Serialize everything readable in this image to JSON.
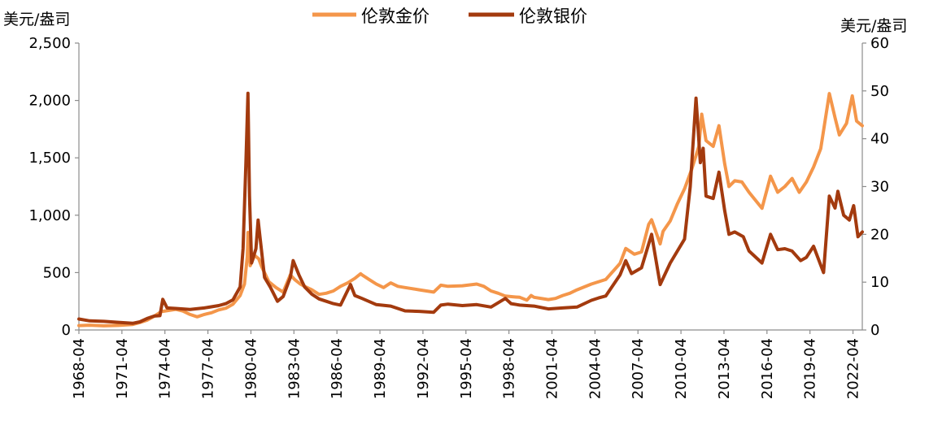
{
  "chart_data": {
    "type": "line",
    "title": "",
    "xlabel": "",
    "left_axis_label": "美元/盎司",
    "right_axis_label": "美元/盎司",
    "left_ylim": [
      0,
      2500
    ],
    "right_ylim": [
      0,
      60
    ],
    "left_ticks": [
      "0",
      "500",
      "1,000",
      "1,500",
      "2,000",
      "2,500"
    ],
    "left_tick_values": [
      0,
      500,
      1000,
      1500,
      2000,
      2500
    ],
    "right_ticks": [
      "0",
      "10",
      "20",
      "30",
      "40",
      "50",
      "60"
    ],
    "right_tick_values": [
      0,
      10,
      20,
      30,
      40,
      50,
      60
    ],
    "x_ticks": [
      "1968-04",
      "1971-04",
      "1974-04",
      "1977-04",
      "1980-04",
      "1983-04",
      "1986-04",
      "1989-04",
      "1992-04",
      "1995-04",
      "1998-04",
      "2001-04",
      "2004-04",
      "2007-04",
      "2010-04",
      "2013-04",
      "2016-04",
      "2019-04",
      "2022-04"
    ],
    "xlim": [
      1968.25,
      2022.9
    ],
    "legend_position": "top-center",
    "grid": false,
    "series": [
      {
        "name": "伦敦金价",
        "axis": "left",
        "color": "#F4964A",
        "points": [
          [
            1968.25,
            38
          ],
          [
            1969.0,
            42
          ],
          [
            1970.0,
            36
          ],
          [
            1971.0,
            40
          ],
          [
            1972.0,
            48
          ],
          [
            1972.5,
            65
          ],
          [
            1973.0,
            85
          ],
          [
            1973.5,
            120
          ],
          [
            1974.0,
            160
          ],
          [
            1974.5,
            170
          ],
          [
            1975.0,
            180
          ],
          [
            1975.5,
            165
          ],
          [
            1976.0,
            135
          ],
          [
            1976.5,
            115
          ],
          [
            1977.0,
            135
          ],
          [
            1977.5,
            150
          ],
          [
            1978.0,
            175
          ],
          [
            1978.5,
            190
          ],
          [
            1979.0,
            225
          ],
          [
            1979.5,
            300
          ],
          [
            1979.8,
            400
          ],
          [
            1980.0,
            640
          ],
          [
            1980.05,
            850
          ],
          [
            1980.2,
            560
          ],
          [
            1980.5,
            650
          ],
          [
            1980.8,
            620
          ],
          [
            1981.0,
            550
          ],
          [
            1981.5,
            420
          ],
          [
            1982.0,
            370
          ],
          [
            1982.5,
            330
          ],
          [
            1983.0,
            480
          ],
          [
            1983.3,
            440
          ],
          [
            1983.7,
            400
          ],
          [
            1984.0,
            380
          ],
          [
            1984.5,
            350
          ],
          [
            1985.0,
            310
          ],
          [
            1985.5,
            320
          ],
          [
            1986.0,
            340
          ],
          [
            1986.5,
            380
          ],
          [
            1987.0,
            410
          ],
          [
            1987.5,
            450
          ],
          [
            1987.9,
            490
          ],
          [
            1988.0,
            480
          ],
          [
            1988.5,
            440
          ],
          [
            1989.0,
            400
          ],
          [
            1989.5,
            370
          ],
          [
            1990.0,
            410
          ],
          [
            1990.5,
            380
          ],
          [
            1991.0,
            370
          ],
          [
            1991.5,
            360
          ],
          [
            1992.0,
            350
          ],
          [
            1992.5,
            340
          ],
          [
            1993.0,
            330
          ],
          [
            1993.5,
            390
          ],
          [
            1994.0,
            380
          ],
          [
            1995.0,
            385
          ],
          [
            1996.0,
            400
          ],
          [
            1996.5,
            380
          ],
          [
            1997.0,
            340
          ],
          [
            1997.5,
            320
          ],
          [
            1998.0,
            295
          ],
          [
            1998.5,
            290
          ],
          [
            1999.0,
            285
          ],
          [
            1999.5,
            260
          ],
          [
            1999.8,
            300
          ],
          [
            2000.0,
            285
          ],
          [
            2001.0,
            265
          ],
          [
            2001.5,
            275
          ],
          [
            2002.0,
            300
          ],
          [
            2002.5,
            320
          ],
          [
            2003.0,
            350
          ],
          [
            2004.0,
            400
          ],
          [
            2005.0,
            440
          ],
          [
            2006.0,
            580
          ],
          [
            2006.4,
            710
          ],
          [
            2007.0,
            660
          ],
          [
            2007.5,
            680
          ],
          [
            2008.0,
            920
          ],
          [
            2008.2,
            960
          ],
          [
            2008.8,
            750
          ],
          [
            2009.0,
            860
          ],
          [
            2009.5,
            950
          ],
          [
            2010.0,
            1100
          ],
          [
            2010.5,
            1230
          ],
          [
            2011.0,
            1400
          ],
          [
            2011.5,
            1600
          ],
          [
            2011.7,
            1880
          ],
          [
            2012.0,
            1650
          ],
          [
            2012.5,
            1600
          ],
          [
            2012.9,
            1780
          ],
          [
            2013.3,
            1450
          ],
          [
            2013.6,
            1250
          ],
          [
            2014.0,
            1300
          ],
          [
            2014.5,
            1290
          ],
          [
            2015.0,
            1200
          ],
          [
            2015.9,
            1060
          ],
          [
            2016.5,
            1340
          ],
          [
            2017.0,
            1200
          ],
          [
            2017.5,
            1250
          ],
          [
            2018.0,
            1320
          ],
          [
            2018.5,
            1200
          ],
          [
            2019.0,
            1290
          ],
          [
            2019.5,
            1420
          ],
          [
            2020.0,
            1580
          ],
          [
            2020.6,
            2060
          ],
          [
            2021.0,
            1850
          ],
          [
            2021.3,
            1700
          ],
          [
            2021.8,
            1800
          ],
          [
            2022.2,
            2040
          ],
          [
            2022.5,
            1820
          ],
          [
            2022.9,
            1780
          ]
        ]
      },
      {
        "name": "伦敦银价",
        "axis": "right",
        "color": "#A33A0E",
        "points": [
          [
            1968.25,
            2.3
          ],
          [
            1969.0,
            1.9
          ],
          [
            1970.0,
            1.8
          ],
          [
            1971.0,
            1.6
          ],
          [
            1972.0,
            1.4
          ],
          [
            1972.5,
            1.7
          ],
          [
            1973.0,
            2.4
          ],
          [
            1973.5,
            2.9
          ],
          [
            1973.9,
            3.0
          ],
          [
            1974.1,
            6.4
          ],
          [
            1974.4,
            4.6
          ],
          [
            1975.0,
            4.5
          ],
          [
            1976.0,
            4.3
          ],
          [
            1977.0,
            4.6
          ],
          [
            1978.0,
            5.1
          ],
          [
            1978.5,
            5.5
          ],
          [
            1979.0,
            6.3
          ],
          [
            1979.5,
            9.0
          ],
          [
            1979.7,
            17.0
          ],
          [
            1979.9,
            35.0
          ],
          [
            1980.04,
            49.5
          ],
          [
            1980.15,
            28.0
          ],
          [
            1980.3,
            14.0
          ],
          [
            1980.6,
            17.0
          ],
          [
            1980.75,
            23.0
          ],
          [
            1980.9,
            19.0
          ],
          [
            1981.2,
            11.0
          ],
          [
            1981.6,
            9.0
          ],
          [
            1982.1,
            6.0
          ],
          [
            1982.5,
            7.0
          ],
          [
            1983.0,
            11.0
          ],
          [
            1983.2,
            14.5
          ],
          [
            1983.6,
            11.5
          ],
          [
            1984.0,
            9.0
          ],
          [
            1984.5,
            7.5
          ],
          [
            1985.0,
            6.5
          ],
          [
            1985.5,
            6.0
          ],
          [
            1986.0,
            5.5
          ],
          [
            1986.5,
            5.2
          ],
          [
            1987.2,
            9.5
          ],
          [
            1987.5,
            7.2
          ],
          [
            1988.0,
            6.6
          ],
          [
            1989.0,
            5.3
          ],
          [
            1990.0,
            5.0
          ],
          [
            1991.0,
            4.0
          ],
          [
            1992.0,
            3.9
          ],
          [
            1993.0,
            3.7
          ],
          [
            1993.5,
            5.2
          ],
          [
            1994.0,
            5.4
          ],
          [
            1995.0,
            5.1
          ],
          [
            1996.0,
            5.3
          ],
          [
            1997.0,
            4.8
          ],
          [
            1998.0,
            6.6
          ],
          [
            1998.4,
            5.5
          ],
          [
            1999.0,
            5.2
          ],
          [
            2000.0,
            5.0
          ],
          [
            2001.0,
            4.4
          ],
          [
            2002.0,
            4.6
          ],
          [
            2003.0,
            4.8
          ],
          [
            2004.0,
            6.2
          ],
          [
            2004.5,
            6.7
          ],
          [
            2005.0,
            7.1
          ],
          [
            2006.0,
            11.5
          ],
          [
            2006.4,
            14.5
          ],
          [
            2006.8,
            11.8
          ],
          [
            2007.5,
            13.0
          ],
          [
            2008.2,
            20.0
          ],
          [
            2008.8,
            9.5
          ],
          [
            2009.5,
            14.0
          ],
          [
            2010.0,
            16.5
          ],
          [
            2010.5,
            19.0
          ],
          [
            2010.9,
            30.0
          ],
          [
            2011.3,
            48.5
          ],
          [
            2011.6,
            35.0
          ],
          [
            2011.8,
            38.0
          ],
          [
            2012.0,
            28.0
          ],
          [
            2012.5,
            27.5
          ],
          [
            2012.9,
            33.0
          ],
          [
            2013.3,
            25.0
          ],
          [
            2013.6,
            20.0
          ],
          [
            2014.0,
            20.5
          ],
          [
            2014.6,
            19.5
          ],
          [
            2015.0,
            16.5
          ],
          [
            2015.9,
            14.0
          ],
          [
            2016.5,
            20.0
          ],
          [
            2017.0,
            16.8
          ],
          [
            2017.5,
            17.0
          ],
          [
            2018.0,
            16.5
          ],
          [
            2018.6,
            14.5
          ],
          [
            2019.0,
            15.2
          ],
          [
            2019.5,
            17.5
          ],
          [
            2020.2,
            12.0
          ],
          [
            2020.6,
            28.0
          ],
          [
            2021.0,
            25.5
          ],
          [
            2021.2,
            29.0
          ],
          [
            2021.6,
            24.0
          ],
          [
            2022.0,
            23.0
          ],
          [
            2022.3,
            26.0
          ],
          [
            2022.6,
            19.5
          ],
          [
            2022.9,
            20.5
          ]
        ]
      }
    ]
  }
}
